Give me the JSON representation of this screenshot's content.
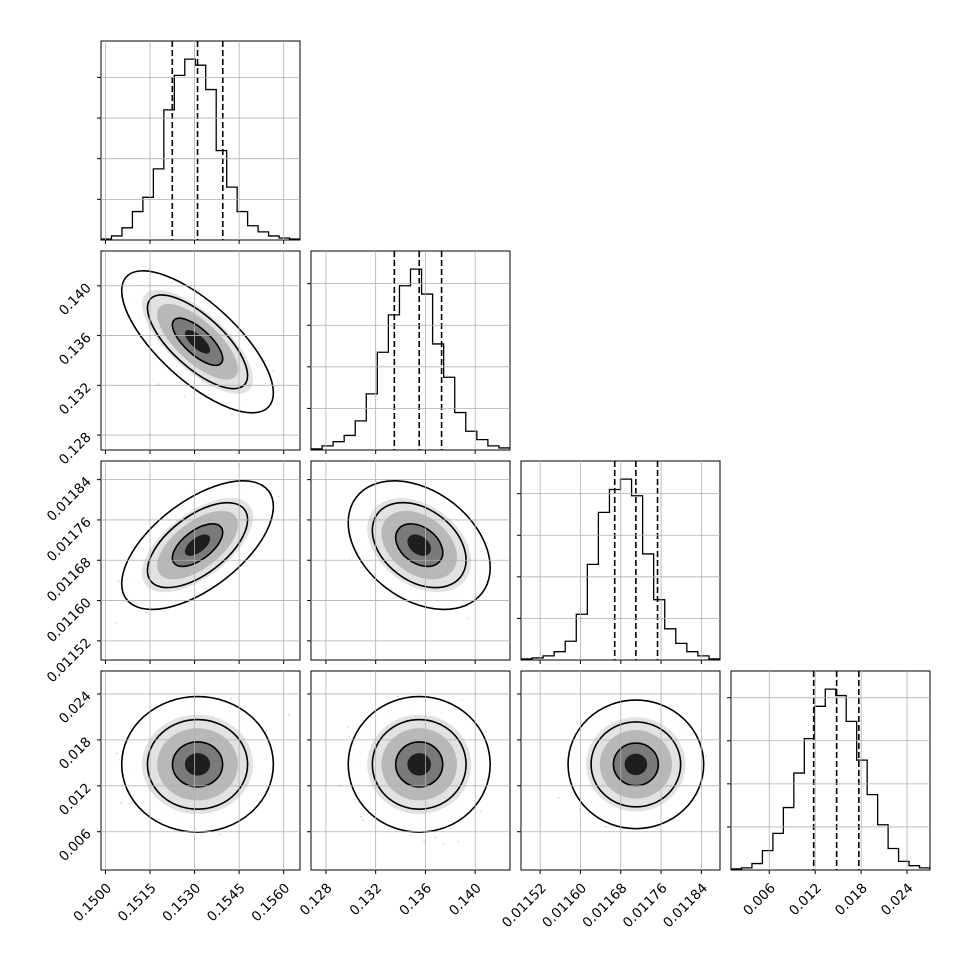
{
  "chart_data": {
    "type": "corner",
    "parameters": [
      {
        "ticks": [
          0.15,
          0.1515,
          0.153,
          0.1545,
          0.156
        ],
        "tick_labels": [
          "0.1500",
          "0.1515",
          "0.1530",
          "0.1545",
          "0.1560"
        ],
        "range": [
          0.14985,
          0.15655
        ],
        "median": 0.1531,
        "q16": 0.15225,
        "q84": 0.15395,
        "hist": [
          0.5,
          2,
          6,
          14,
          21,
          35,
          64,
          81,
          89,
          86,
          74,
          44,
          26,
          14,
          7,
          4,
          2,
          1,
          0.5
        ]
      },
      {
        "ticks": [
          0.128,
          0.132,
          0.136,
          0.14
        ],
        "tick_labels": [
          "0.128",
          "0.132",
          "0.136",
          "0.140"
        ],
        "range": [
          0.1268,
          0.1428
        ],
        "median": 0.1355,
        "q16": 0.1335,
        "q84": 0.1373,
        "hist": [
          0.5,
          2,
          4,
          7,
          14,
          27,
          47,
          65,
          79,
          87,
          75,
          51,
          35,
          18,
          9,
          5,
          2,
          1
        ]
      },
      {
        "ticks": [
          0.01152,
          0.0116,
          0.01168,
          0.01176,
          0.01184
        ],
        "tick_labels": [
          "0.01152",
          "0.01160",
          "0.01168",
          "0.01176",
          "0.01184"
        ],
        "range": [
          0.011482,
          0.011877
        ],
        "median": 0.01171,
        "q16": 0.011668,
        "q84": 0.011753,
        "hist": [
          0.5,
          1,
          2,
          4,
          9,
          22,
          46,
          71,
          82,
          87,
          79,
          51,
          29,
          15,
          8,
          4,
          2,
          0.5
        ]
      },
      {
        "ticks": [
          0.006,
          0.012,
          0.018,
          0.024
        ],
        "tick_labels": [
          "0.006",
          "0.012",
          "0.018",
          "0.024"
        ],
        "range": [
          0.001,
          0.027
        ],
        "median": 0.0148,
        "q16": 0.0118,
        "q84": 0.0177,
        "hist": [
          0.5,
          1,
          3,
          9,
          17,
          29,
          45,
          61,
          76,
          84,
          81,
          69,
          51,
          35,
          21,
          10,
          4,
          2,
          1
        ]
      }
    ],
    "correlations": [
      {
        "pair": [
          0,
          1
        ],
        "rho": -0.72
      },
      {
        "pair": [
          0,
          2
        ],
        "rho": 0.6
      },
      {
        "pair": [
          1,
          2
        ],
        "rho": -0.35
      },
      {
        "pair": [
          0,
          3
        ],
        "rho": 0.0
      },
      {
        "pair": [
          1,
          3
        ],
        "rho": 0.0
      },
      {
        "pair": [
          2,
          3
        ],
        "rho": 0.0
      }
    ],
    "contour_levels": [
      0.39,
      0.86,
      0.989
    ],
    "quantile_lines": "dashed",
    "grid": true
  }
}
